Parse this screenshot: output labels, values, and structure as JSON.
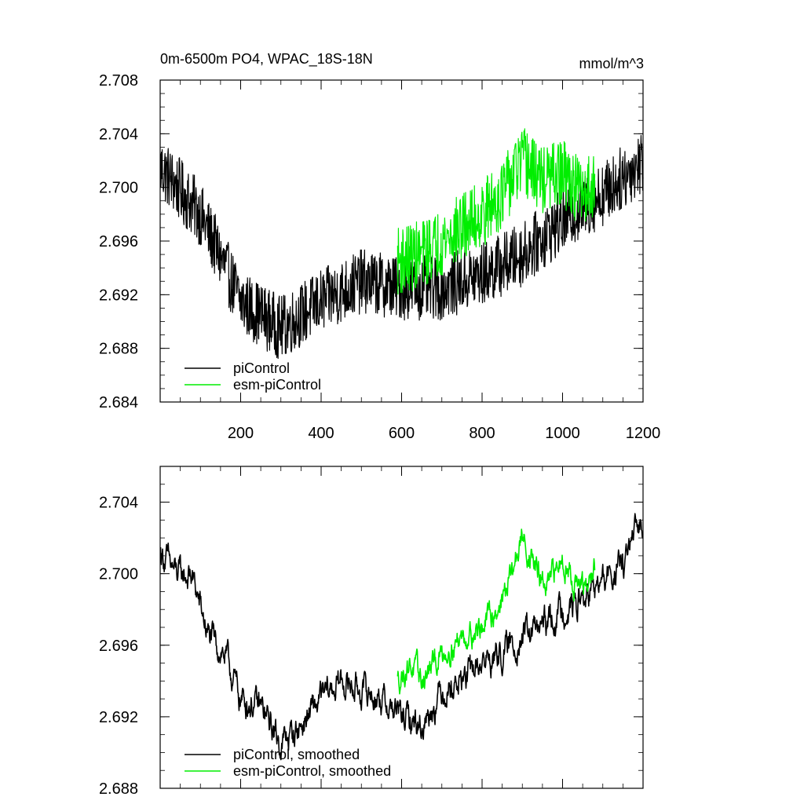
{
  "chart_data": [
    {
      "type": "line",
      "title": "0m-6500m PO4, WPAC_18S-18N",
      "units": "mmol/m^3",
      "xlim": [
        0,
        1200
      ],
      "ylim": [
        2.684,
        2.708
      ],
      "xticks": [
        200,
        400,
        600,
        800,
        1000,
        1200
      ],
      "xtick_labels": [
        "200",
        "400",
        "600",
        "800",
        "1000",
        "1200"
      ],
      "yticks": [
        2.684,
        2.688,
        2.692,
        2.696,
        2.7,
        2.704,
        2.708
      ],
      "ytick_labels": [
        "2.684",
        "2.688",
        "2.692",
        "2.696",
        "2.700",
        "2.704",
        "2.708"
      ],
      "legend_position": "bottom-left",
      "series": [
        {
          "name": "piControl",
          "color": "#000000",
          "x": [
            1,
            100,
            200,
            300,
            400,
            500,
            600,
            700,
            800,
            900,
            1000,
            1100,
            1200
          ],
          "y": [
            2.7015,
            2.698,
            2.6915,
            2.6895,
            2.6915,
            2.693,
            2.6925,
            2.6925,
            2.6935,
            2.695,
            2.6975,
            2.6995,
            2.702
          ],
          "noise": 0.003
        },
        {
          "name": "esm-piControl",
          "color": "#00ee00",
          "x": [
            590,
            650,
            700,
            750,
            800,
            850,
            900,
            950,
            1000,
            1050,
            1080
          ],
          "y": [
            2.6945,
            2.695,
            2.696,
            2.697,
            2.698,
            2.6995,
            2.702,
            2.7005,
            2.701,
            2.6995,
            2.7005
          ],
          "noise": 0.0032
        }
      ]
    },
    {
      "type": "line",
      "title": "",
      "xlim": [
        0,
        1200
      ],
      "ylim": [
        2.688,
        2.706
      ],
      "xticks": [
        200,
        400,
        600,
        800,
        1000,
        1200
      ],
      "yticks": [
        2.688,
        2.692,
        2.696,
        2.7,
        2.704
      ],
      "ytick_labels": [
        "2.688",
        "2.692",
        "2.696",
        "2.700",
        "2.704"
      ],
      "legend_position": "bottom-left",
      "series": [
        {
          "name": "piControl, smoothed",
          "color": "#000000",
          "x": [
            1,
            40,
            80,
            120,
            160,
            200,
            250,
            300,
            350,
            400,
            450,
            500,
            550,
            600,
            650,
            700,
            750,
            800,
            850,
            900,
            950,
            1000,
            1050,
            1100,
            1150,
            1200
          ],
          "y": [
            2.7012,
            2.7,
            2.6998,
            2.6965,
            2.6955,
            2.693,
            2.6925,
            2.6905,
            2.6915,
            2.693,
            2.694,
            2.6935,
            2.693,
            2.692,
            2.6915,
            2.6935,
            2.694,
            2.695,
            2.6955,
            2.6965,
            2.697,
            2.698,
            2.6985,
            2.6995,
            2.7005,
            2.703
          ],
          "noise": 0.0008
        },
        {
          "name": "esm-piControl, smoothed",
          "color": "#00ee00",
          "x": [
            590,
            620,
            650,
            700,
            750,
            800,
            850,
            880,
            900,
            930,
            960,
            1000,
            1030,
            1060,
            1080
          ],
          "y": [
            2.694,
            2.695,
            2.694,
            2.6955,
            2.6965,
            2.697,
            2.6985,
            2.7005,
            2.702,
            2.7005,
            2.699,
            2.701,
            2.6995,
            2.699,
            2.7005
          ],
          "noise": 0.0007
        }
      ]
    }
  ]
}
